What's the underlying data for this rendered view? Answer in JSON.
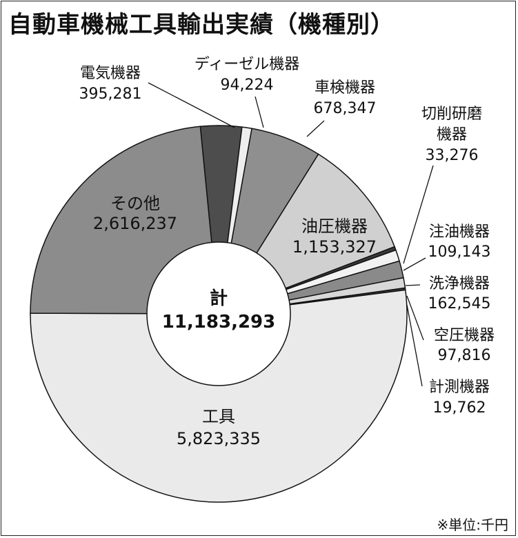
{
  "title": "自動車機械工具輸出実績（機種別）",
  "unit_note": "※単位:千円",
  "center": {
    "label": "計",
    "value": "11,183,293"
  },
  "chart_data": {
    "type": "pie",
    "total": 11183293,
    "slices": [
      {
        "name": "電気機器",
        "value": 395281,
        "label": "395,281",
        "color": "#4d4d4d"
      },
      {
        "name": "ディーゼル機器",
        "value": 94224,
        "label": "94,224",
        "color": "#eeeeee"
      },
      {
        "name": "車検機器",
        "value": 678347,
        "label": "678,347",
        "color": "#8f8f8f"
      },
      {
        "name": "油圧機器",
        "value": 1153327,
        "label": "1,153,327",
        "color": "#d0d0d0"
      },
      {
        "name": "切削研磨機器",
        "value": 33276,
        "label": "33,276",
        "color": "#3a3a3a"
      },
      {
        "name": "注油機器",
        "value": 109143,
        "label": "109,143",
        "color": "#f2f2f2"
      },
      {
        "name": "洗浄機器",
        "value": 162545,
        "label": "162,545",
        "color": "#8a8a8a"
      },
      {
        "name": "空圧機器",
        "value": 97816,
        "label": "97,816",
        "color": "#d8d8d8"
      },
      {
        "name": "計測機器",
        "value": 19762,
        "label": "19,762",
        "color": "#3a3a3a"
      },
      {
        "name": "工具",
        "value": 5823335,
        "label": "5,823,335",
        "color": "#eaeaea"
      },
      {
        "name": "その他",
        "value": 2616237,
        "label": "2,616,237",
        "color": "#8c8c8c"
      }
    ]
  }
}
